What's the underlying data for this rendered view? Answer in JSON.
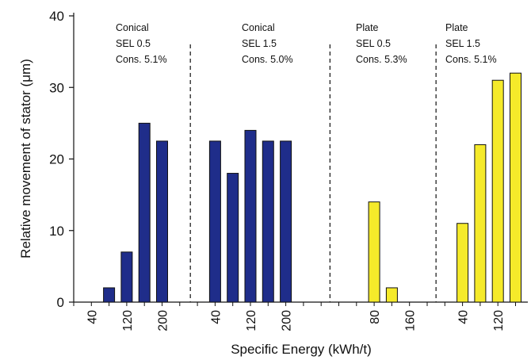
{
  "chart_data": {
    "type": "bar",
    "title": "",
    "xlabel": "Specific Energy (kWh/t)",
    "ylabel": "Relative movement of stator (μm)",
    "ylim": [
      0,
      40
    ],
    "yticks": [
      0,
      10,
      20,
      30,
      40
    ],
    "grid": false,
    "groups": [
      {
        "annotation": [
          "Conical",
          "SEL 0.5",
          "Cons. 5.1%"
        ],
        "color": "#1f2d8a",
        "ticks": [
          "40",
          "120",
          "200"
        ],
        "bars": [
          {
            "x": 80,
            "y": 2
          },
          {
            "x": 120,
            "y": 7
          },
          {
            "x": 160,
            "y": 25
          },
          {
            "x": 200,
            "y": 22.5
          }
        ]
      },
      {
        "annotation": [
          "Conical",
          "SEL 1.5",
          "Cons. 5.0%"
        ],
        "color": "#1f2d8a",
        "ticks": [
          "40",
          "120",
          "200"
        ],
        "bars": [
          {
            "x": 40,
            "y": 22.5
          },
          {
            "x": 80,
            "y": 18
          },
          {
            "x": 120,
            "y": 24
          },
          {
            "x": 160,
            "y": 22.5
          },
          {
            "x": 200,
            "y": 22.5
          }
        ]
      },
      {
        "annotation": [
          "Plate",
          "SEL 0.5",
          "Cons. 5.3%"
        ],
        "color": "#f5ea2a",
        "ticks": [
          "80",
          "160"
        ],
        "bars": [
          {
            "x": 80,
            "y": 14
          },
          {
            "x": 120,
            "y": 2
          }
        ]
      },
      {
        "annotation": [
          "Plate",
          "SEL 1.5",
          "Cons. 5.1%"
        ],
        "color": "#f5ea2a",
        "ticks": [
          "40",
          "120"
        ],
        "bars": [
          {
            "x": 40,
            "y": 11
          },
          {
            "x": 80,
            "y": 22
          },
          {
            "x": 120,
            "y": 31
          },
          {
            "x": 160,
            "y": 32
          }
        ]
      }
    ]
  }
}
